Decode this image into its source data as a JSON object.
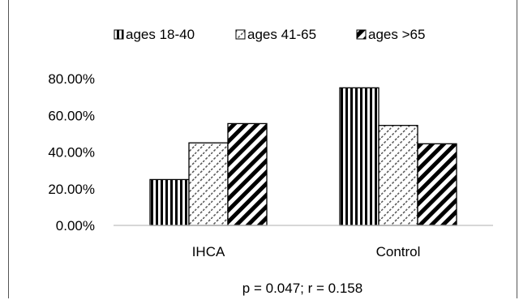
{
  "chart_data": {
    "type": "bar",
    "categories": [
      "IHCA",
      "Control"
    ],
    "series": [
      {
        "name": "ages 18-40",
        "values": [
          0.25,
          0.75
        ],
        "pattern": "vertical-stripes"
      },
      {
        "name": "ages 41-65",
        "values": [
          0.45,
          0.545
        ],
        "pattern": "light-diagonal-dashes"
      },
      {
        "name": "ages >65",
        "values": [
          0.555,
          0.445
        ],
        "pattern": "dark-diagonal-stripes"
      }
    ],
    "ylim": [
      0,
      0.8
    ],
    "yticks": [
      0,
      0.2,
      0.4,
      0.6,
      0.8
    ],
    "ytick_labels": [
      "0.00%",
      "20.00%",
      "40.00%",
      "60.00%",
      "80.00%"
    ],
    "legend_position": "top",
    "grid": false,
    "annotation": "p = 0.047; r = 0.158"
  },
  "colors": {
    "bar_outline": "#000000",
    "pattern": "#000000",
    "axis": "#bfbfbf"
  }
}
